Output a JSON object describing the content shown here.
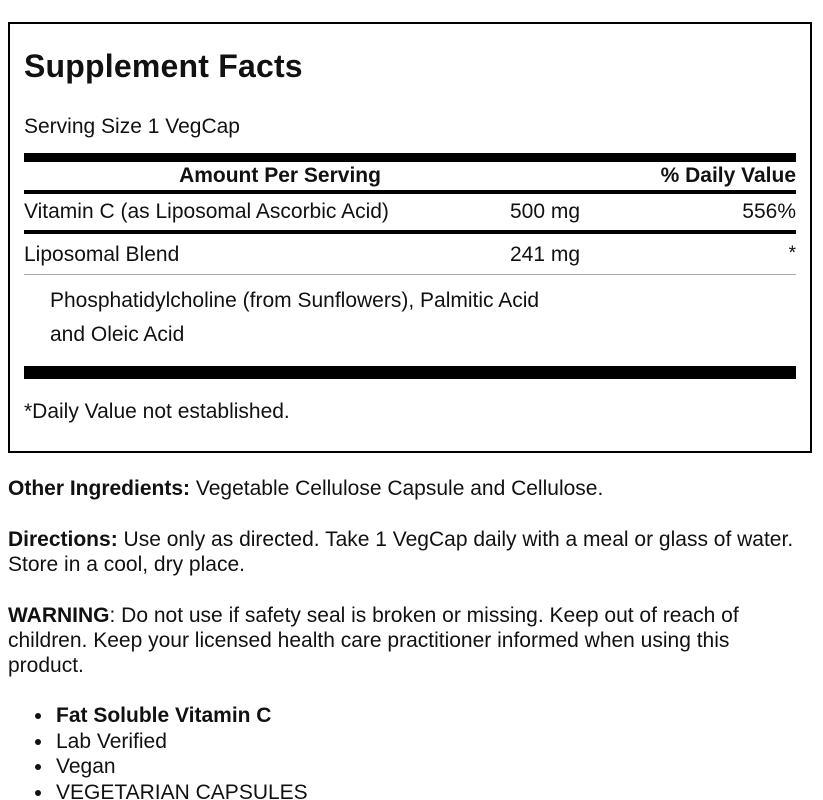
{
  "supplement_facts": {
    "title": "Supplement Facts",
    "serving_size": "Serving Size 1 VegCap",
    "header": {
      "amount_col": "Amount Per Serving",
      "dv_col": "% Daily Value"
    },
    "rows": [
      {
        "name": "Vitamin C (as Liposomal Ascorbic Acid)",
        "amount": "500 mg",
        "dv": "556%"
      },
      {
        "name": "Liposomal Blend",
        "amount": "241 mg",
        "dv": "*"
      }
    ],
    "sub_ingredient_lines": [
      "Phosphatidylcholine (from Sunflowers), Palmitic Acid",
      "and Oleic Acid"
    ],
    "footnote": "*Daily Value not established."
  },
  "sections": {
    "other_ingredients": {
      "label": "Other Ingredients:",
      "text": " Vegetable Cellulose Capsule and Cellulose."
    },
    "directions": {
      "label": "Directions:",
      "text": " Use only as directed. Take 1 VegCap daily with a meal or glass of water. Store in a cool, dry place."
    },
    "warning": {
      "label": "WARNING",
      "text": ": Do not use if safety seal is broken or missing. Keep out of reach of children. Keep your licensed health care practitioner informed when using this product."
    }
  },
  "features": [
    "Fat Soluble Vitamin C",
    "Lab Verified",
    "Vegan",
    "VEGETARIAN CAPSULES"
  ],
  "colors": {
    "text": "#111111",
    "panel_border": "#000000",
    "heavy_rule": "#000000",
    "thin_rule": "#aaaaaa",
    "background": "#ffffff"
  }
}
